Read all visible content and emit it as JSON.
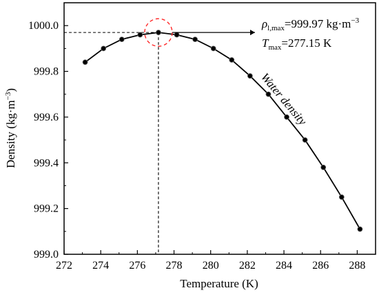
{
  "chart_data": {
    "type": "line",
    "xlabel": "Temperature (K)",
    "ylabel": {
      "base": "Density (kg·m",
      "sup": "−3",
      "tail": ")"
    },
    "xlim": [
      272,
      289
    ],
    "ylim": [
      999.0,
      1000.1
    ],
    "x_ticks": [
      272,
      274,
      276,
      278,
      280,
      282,
      284,
      286,
      288
    ],
    "x_tick_labels": [
      "272",
      "274",
      "276",
      "278",
      "280",
      "282",
      "284",
      "286",
      "288"
    ],
    "y_ticks": [
      999.0,
      999.2,
      999.4,
      999.6,
      999.8,
      1000.0
    ],
    "y_tick_labels": [
      "999.0",
      "999.2",
      "999.4",
      "999.6",
      "999.8",
      "1000.0"
    ],
    "grid": false,
    "series": [
      {
        "name": "Water density",
        "points": [
          {
            "x": 273.15,
            "y": 999.84
          },
          {
            "x": 274.15,
            "y": 999.9
          },
          {
            "x": 275.15,
            "y": 999.94
          },
          {
            "x": 276.15,
            "y": 999.96
          },
          {
            "x": 277.15,
            "y": 999.97
          },
          {
            "x": 278.15,
            "y": 999.96
          },
          {
            "x": 279.15,
            "y": 999.94
          },
          {
            "x": 280.15,
            "y": 999.9
          },
          {
            "x": 281.15,
            "y": 999.85
          },
          {
            "x": 282.15,
            "y": 999.78
          },
          {
            "x": 283.15,
            "y": 999.7
          },
          {
            "x": 284.15,
            "y": 999.6
          },
          {
            "x": 285.15,
            "y": 999.5
          },
          {
            "x": 286.15,
            "y": 999.38
          },
          {
            "x": 287.15,
            "y": 999.25
          },
          {
            "x": 288.15,
            "y": 999.11
          }
        ]
      }
    ],
    "max_point": {
      "x": 277.15,
      "y": 999.97
    },
    "annotations": {
      "curve_label": "Water density",
      "rho_symbol": "ρ",
      "rho_sub": "l,max",
      "rho_value": "=999.97 kg·m",
      "rho_sup": "−3",
      "t_symbol": "T",
      "t_sub": "max",
      "t_value": "=277.15 K"
    },
    "colors": {
      "line": "#000000",
      "marker": "#000000",
      "highlight_circle": "#ff2a2a"
    }
  }
}
